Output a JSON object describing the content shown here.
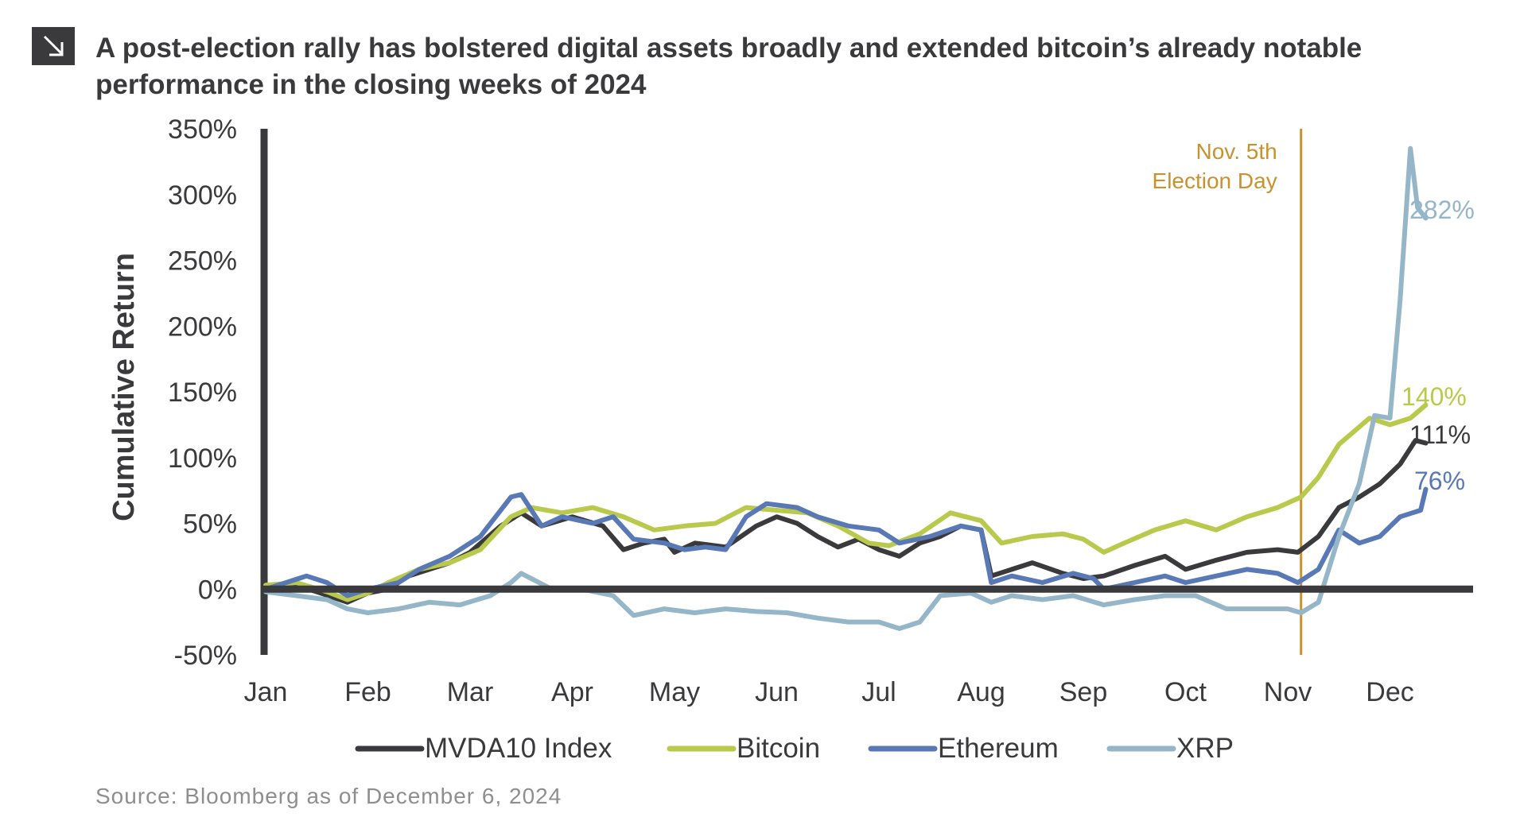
{
  "header": {
    "title": "A post-election rally has bolstered digital assets broadly and extended bitcoin’s already notable performance in the closing weeks of 2024",
    "icon": "arrow-down-right-icon"
  },
  "footer": {
    "source": "Source: Bloomberg as of December 6, 2024"
  },
  "chart_data": {
    "type": "line",
    "title": "A post-election rally has bolstered digital assets broadly and extended bitcoin’s already notable performance in the closing weeks of 2024",
    "ylabel": "Cumulative Return",
    "xlabel": "",
    "ylim": [
      -50,
      350
    ],
    "yticks": [
      -50,
      0,
      50,
      100,
      150,
      200,
      250,
      300,
      350
    ],
    "ytick_labels": [
      "-50%",
      "0%",
      "50%",
      "100%",
      "150%",
      "200%",
      "250%",
      "300%",
      "350%"
    ],
    "xticks": [
      "Jan",
      "Feb",
      "Mar",
      "Apr",
      "May",
      "Jun",
      "Jul",
      "Aug",
      "Sep",
      "Oct",
      "Nov",
      "Dec"
    ],
    "xlim": [
      0,
      11.4
    ],
    "grid": false,
    "legend_position": "bottom",
    "annotation": {
      "lines": [
        "Nov. 5th",
        "Election Day"
      ],
      "x": 10.13,
      "color": "#c8922e"
    },
    "series": [
      {
        "name": "MVDA10 Index",
        "color": "#3a3a3c",
        "end_label": "111%",
        "points": [
          [
            0,
            0
          ],
          [
            0.3,
            3
          ],
          [
            0.5,
            -2
          ],
          [
            0.8,
            -10
          ],
          [
            1.0,
            -3
          ],
          [
            1.2,
            0
          ],
          [
            1.4,
            10
          ],
          [
            1.6,
            15
          ],
          [
            1.8,
            20
          ],
          [
            2.0,
            28
          ],
          [
            2.3,
            48
          ],
          [
            2.5,
            58
          ],
          [
            2.7,
            48
          ],
          [
            3.0,
            55
          ],
          [
            3.3,
            48
          ],
          [
            3.5,
            30
          ],
          [
            3.7,
            35
          ],
          [
            3.9,
            38
          ],
          [
            4.0,
            28
          ],
          [
            4.2,
            35
          ],
          [
            4.5,
            32
          ],
          [
            4.8,
            48
          ],
          [
            5.0,
            55
          ],
          [
            5.2,
            50
          ],
          [
            5.4,
            40
          ],
          [
            5.6,
            32
          ],
          [
            5.8,
            38
          ],
          [
            6.0,
            30
          ],
          [
            6.2,
            25
          ],
          [
            6.4,
            35
          ],
          [
            6.6,
            40
          ],
          [
            6.8,
            48
          ],
          [
            7.0,
            45
          ],
          [
            7.1,
            10
          ],
          [
            7.3,
            15
          ],
          [
            7.5,
            20
          ],
          [
            7.8,
            12
          ],
          [
            8.0,
            8
          ],
          [
            8.2,
            10
          ],
          [
            8.5,
            18
          ],
          [
            8.8,
            25
          ],
          [
            9.0,
            15
          ],
          [
            9.3,
            22
          ],
          [
            9.6,
            28
          ],
          [
            9.9,
            30
          ],
          [
            10.1,
            28
          ],
          [
            10.3,
            40
          ],
          [
            10.5,
            62
          ],
          [
            10.7,
            70
          ],
          [
            10.9,
            80
          ],
          [
            11.1,
            95
          ],
          [
            11.25,
            113
          ],
          [
            11.35,
            111
          ]
        ]
      },
      {
        "name": "Bitcoin",
        "color": "#b9c94b",
        "end_label": "140%",
        "points": [
          [
            0,
            3
          ],
          [
            0.3,
            5
          ],
          [
            0.6,
            -2
          ],
          [
            0.8,
            -8
          ],
          [
            1.0,
            -3
          ],
          [
            1.2,
            5
          ],
          [
            1.5,
            15
          ],
          [
            1.8,
            20
          ],
          [
            2.1,
            30
          ],
          [
            2.4,
            55
          ],
          [
            2.6,
            62
          ],
          [
            2.9,
            58
          ],
          [
            3.2,
            62
          ],
          [
            3.5,
            55
          ],
          [
            3.8,
            45
          ],
          [
            4.1,
            48
          ],
          [
            4.4,
            50
          ],
          [
            4.7,
            62
          ],
          [
            5.0,
            60
          ],
          [
            5.3,
            58
          ],
          [
            5.6,
            48
          ],
          [
            5.9,
            35
          ],
          [
            6.1,
            33
          ],
          [
            6.4,
            42
          ],
          [
            6.7,
            58
          ],
          [
            7.0,
            52
          ],
          [
            7.2,
            35
          ],
          [
            7.5,
            40
          ],
          [
            7.8,
            42
          ],
          [
            8.0,
            38
          ],
          [
            8.2,
            28
          ],
          [
            8.4,
            35
          ],
          [
            8.7,
            45
          ],
          [
            9.0,
            52
          ],
          [
            9.3,
            45
          ],
          [
            9.6,
            55
          ],
          [
            9.9,
            62
          ],
          [
            10.13,
            70
          ],
          [
            10.3,
            85
          ],
          [
            10.5,
            110
          ],
          [
            10.8,
            130
          ],
          [
            11.0,
            125
          ],
          [
            11.2,
            130
          ],
          [
            11.35,
            140
          ]
        ]
      },
      {
        "name": "Ethereum",
        "color": "#5878b6",
        "end_label": "76%",
        "points": [
          [
            0,
            0
          ],
          [
            0.2,
            5
          ],
          [
            0.4,
            10
          ],
          [
            0.6,
            5
          ],
          [
            0.8,
            -5
          ],
          [
            1.0,
            0
          ],
          [
            1.3,
            5
          ],
          [
            1.5,
            15
          ],
          [
            1.8,
            25
          ],
          [
            2.1,
            40
          ],
          [
            2.4,
            70
          ],
          [
            2.5,
            72
          ],
          [
            2.7,
            48
          ],
          [
            2.9,
            55
          ],
          [
            3.2,
            50
          ],
          [
            3.4,
            55
          ],
          [
            3.6,
            38
          ],
          [
            3.9,
            35
          ],
          [
            4.1,
            30
          ],
          [
            4.3,
            32
          ],
          [
            4.5,
            30
          ],
          [
            4.7,
            55
          ],
          [
            4.9,
            65
          ],
          [
            5.2,
            62
          ],
          [
            5.4,
            55
          ],
          [
            5.7,
            48
          ],
          [
            6.0,
            45
          ],
          [
            6.2,
            35
          ],
          [
            6.5,
            40
          ],
          [
            6.8,
            48
          ],
          [
            7.0,
            45
          ],
          [
            7.1,
            5
          ],
          [
            7.3,
            10
          ],
          [
            7.6,
            5
          ],
          [
            7.9,
            12
          ],
          [
            8.1,
            8
          ],
          [
            8.2,
            0
          ],
          [
            8.5,
            5
          ],
          [
            8.8,
            10
          ],
          [
            9.0,
            5
          ],
          [
            9.3,
            10
          ],
          [
            9.6,
            15
          ],
          [
            9.9,
            12
          ],
          [
            10.1,
            5
          ],
          [
            10.3,
            15
          ],
          [
            10.5,
            45
          ],
          [
            10.7,
            35
          ],
          [
            10.9,
            40
          ],
          [
            11.1,
            55
          ],
          [
            11.3,
            60
          ],
          [
            11.35,
            76
          ]
        ]
      },
      {
        "name": "XRP",
        "color": "#95b6c9",
        "end_label": "282%",
        "points": [
          [
            0,
            -2
          ],
          [
            0.3,
            -5
          ],
          [
            0.6,
            -8
          ],
          [
            0.8,
            -15
          ],
          [
            1.0,
            -18
          ],
          [
            1.3,
            -15
          ],
          [
            1.6,
            -10
          ],
          [
            1.9,
            -12
          ],
          [
            2.2,
            -5
          ],
          [
            2.4,
            5
          ],
          [
            2.5,
            12
          ],
          [
            2.8,
            0
          ],
          [
            3.1,
            0
          ],
          [
            3.4,
            -5
          ],
          [
            3.6,
            -20
          ],
          [
            3.9,
            -15
          ],
          [
            4.2,
            -18
          ],
          [
            4.5,
            -15
          ],
          [
            4.8,
            -17
          ],
          [
            5.1,
            -18
          ],
          [
            5.4,
            -22
          ],
          [
            5.7,
            -25
          ],
          [
            6.0,
            -25
          ],
          [
            6.2,
            -30
          ],
          [
            6.4,
            -25
          ],
          [
            6.6,
            -5
          ],
          [
            6.9,
            -3
          ],
          [
            7.1,
            -10
          ],
          [
            7.3,
            -5
          ],
          [
            7.6,
            -8
          ],
          [
            7.9,
            -5
          ],
          [
            8.2,
            -12
          ],
          [
            8.5,
            -8
          ],
          [
            8.8,
            -5
          ],
          [
            9.1,
            -5
          ],
          [
            9.4,
            -15
          ],
          [
            9.7,
            -15
          ],
          [
            10.0,
            -15
          ],
          [
            10.13,
            -18
          ],
          [
            10.3,
            -10
          ],
          [
            10.5,
            40
          ],
          [
            10.7,
            80
          ],
          [
            10.85,
            132
          ],
          [
            11.0,
            130
          ],
          [
            11.1,
            220
          ],
          [
            11.2,
            335
          ],
          [
            11.27,
            290
          ],
          [
            11.35,
            282
          ]
        ]
      }
    ]
  }
}
